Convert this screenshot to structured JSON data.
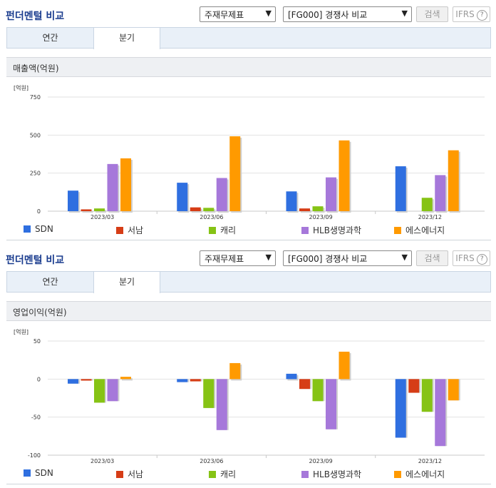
{
  "header": {
    "title": "펀더멘털 비교",
    "select_statement": "주재무제표",
    "select_compare": "[FG000] 경쟁사 비교",
    "search_label": "검색",
    "ifrs_label": "IFRS",
    "help_glyph": "?",
    "dropdown_glyph": "▼"
  },
  "tabs": [
    {
      "label": "연간",
      "active": false
    },
    {
      "label": "분기",
      "active": true
    }
  ],
  "icons": [
    "chevron-down-icon",
    "help-icon"
  ],
  "colors": {
    "SDN": "#2f6fe0",
    "서남": "#d63d16",
    "캐리": "#86c315",
    "HLB생명과학": "#a678da",
    "에스에너지": "#ff9a00"
  },
  "chart_data": [
    {
      "type": "bar",
      "title": "매출액(억원)",
      "unit": "[억원]",
      "categories": [
        "2023/03",
        "2023/06",
        "2023/09",
        "2023/12"
      ],
      "ylim": [
        0,
        750
      ],
      "yticks": [
        0,
        250,
        500,
        750
      ],
      "grid": true,
      "series": [
        {
          "name": "SDN",
          "values": [
            135,
            187,
            130,
            295
          ]
        },
        {
          "name": "서남",
          "values": [
            12,
            25,
            18,
            0
          ]
        },
        {
          "name": "캐리",
          "values": [
            18,
            22,
            32,
            88
          ]
        },
        {
          "name": "HLB생명과학",
          "values": [
            310,
            218,
            222,
            237
          ]
        },
        {
          "name": "에스에너지",
          "values": [
            347,
            492,
            465,
            400
          ]
        }
      ]
    },
    {
      "type": "bar",
      "title": "영업이익(억원)",
      "unit": "[억원]",
      "categories": [
        "2023/03",
        "2023/06",
        "2023/09",
        "2023/12"
      ],
      "ylim": [
        -100,
        50
      ],
      "yticks": [
        -100,
        -50,
        0,
        50
      ],
      "grid": true,
      "series": [
        {
          "name": "SDN",
          "values": [
            -6,
            -4,
            7,
            -77
          ]
        },
        {
          "name": "서남",
          "values": [
            -2,
            -3,
            -13,
            -18
          ]
        },
        {
          "name": "캐리",
          "values": [
            -31,
            -38,
            -29,
            -43
          ]
        },
        {
          "name": "HLB생명과학",
          "values": [
            -29,
            -67,
            -66,
            -88
          ]
        },
        {
          "name": "에스에너지",
          "values": [
            3,
            21,
            36,
            -28
          ]
        }
      ]
    }
  ]
}
